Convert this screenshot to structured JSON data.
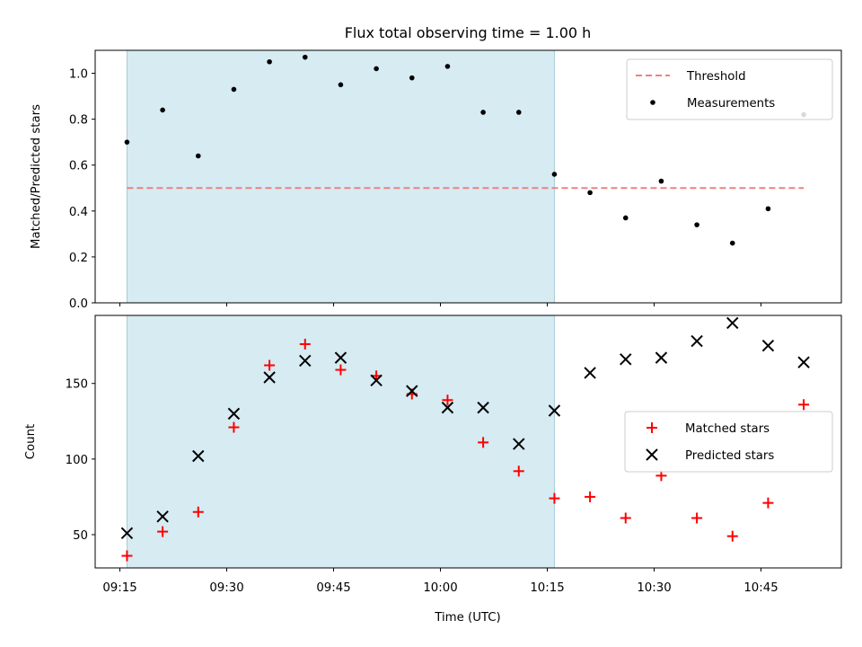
{
  "chart_data": [
    {
      "type": "scatter",
      "title": "Flux total observing time = 1.00 h",
      "xlabel": "",
      "ylabel": "Matched/Predicted stars",
      "ylim": [
        0,
        1.1
      ],
      "y_ticks": [
        "0.0",
        "0.2",
        "0.4",
        "0.6",
        "0.8",
        "1.0"
      ],
      "x_time_ticks": [
        "09:15",
        "09:30",
        "09:45",
        "10:00",
        "10:15",
        "10:30",
        "10:45"
      ],
      "shaded_interval": {
        "start": "09:16",
        "end": "10:16",
        "color": "#add8e6"
      },
      "legend_position": "top-right",
      "threshold": {
        "name": "Threshold",
        "value": 0.5,
        "start": "09:16",
        "end": "10:51",
        "color": "#f08080"
      },
      "series": [
        {
          "name": "Measurements",
          "color": "#000000",
          "marker": "dot",
          "x": [
            "09:16",
            "09:21",
            "09:26",
            "09:31",
            "09:36",
            "09:41",
            "09:46",
            "09:51",
            "09:56",
            "10:01",
            "10:06",
            "10:11",
            "10:16",
            "10:21",
            "10:26",
            "10:31",
            "10:36",
            "10:41",
            "10:46",
            "10:51"
          ],
          "values": [
            0.7,
            0.84,
            0.64,
            0.93,
            1.05,
            1.07,
            0.95,
            1.02,
            0.98,
            1.03,
            0.83,
            0.83,
            0.56,
            0.48,
            0.37,
            0.53,
            0.34,
            0.26,
            0.41,
            0.82
          ]
        }
      ]
    },
    {
      "type": "scatter",
      "title": "",
      "xlabel": "Time (UTC)",
      "ylabel": "Count",
      "ylim": [
        28,
        195
      ],
      "y_ticks": [
        "50",
        "100",
        "150"
      ],
      "x_time_ticks": [
        "09:15",
        "09:30",
        "09:45",
        "10:00",
        "10:15",
        "10:30",
        "10:45"
      ],
      "shaded_interval": {
        "start": "09:16",
        "end": "10:16",
        "color": "#add8e6"
      },
      "legend_position": "center-right",
      "series": [
        {
          "name": "Matched stars",
          "color": "#ff0000",
          "marker": "plus",
          "x": [
            "09:16",
            "09:21",
            "09:26",
            "09:31",
            "09:36",
            "09:41",
            "09:46",
            "09:51",
            "09:56",
            "10:01",
            "10:06",
            "10:11",
            "10:16",
            "10:21",
            "10:26",
            "10:31",
            "10:36",
            "10:41",
            "10:46",
            "10:51"
          ],
          "values": [
            36,
            52,
            65,
            121,
            162,
            176,
            159,
            155,
            143,
            139,
            111,
            92,
            74,
            75,
            61,
            89,
            61,
            49,
            71,
            136
          ]
        },
        {
          "name": "Predicted stars",
          "color": "#000000",
          "marker": "x",
          "x": [
            "09:16",
            "09:21",
            "09:26",
            "09:31",
            "09:36",
            "09:41",
            "09:46",
            "09:51",
            "09:56",
            "10:01",
            "10:06",
            "10:11",
            "10:16",
            "10:21",
            "10:26",
            "10:31",
            "10:36",
            "10:41",
            "10:46",
            "10:51"
          ],
          "values": [
            51,
            62,
            102,
            130,
            154,
            165,
            167,
            152,
            145,
            134,
            134,
            110,
            132,
            157,
            166,
            167,
            178,
            190,
            175,
            164
          ]
        }
      ]
    }
  ]
}
